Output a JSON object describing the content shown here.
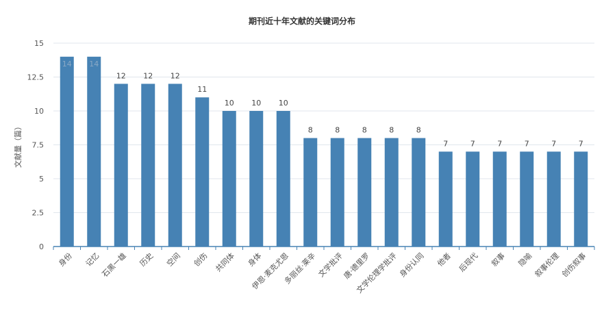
{
  "chart_data": {
    "type": "bar",
    "title": "期刊近十年文献的关键词分布",
    "xlabel": "",
    "ylabel": "文献量（篇）",
    "ylim": [
      0,
      15
    ],
    "yticks": [
      "0",
      "2.5",
      "5",
      "7.5",
      "10",
      "12.5",
      "15"
    ],
    "ytick_values": [
      0,
      2.5,
      5,
      7.5,
      10,
      12.5,
      15
    ],
    "categories": [
      "身份",
      "记忆",
      "石黑一雄",
      "历史",
      "空间",
      "创伤",
      "共同体",
      "身体",
      "伊恩·麦克尤恩",
      "多丽丝·莱辛",
      "文学批评",
      "唐·德里罗",
      "文学伦理学批评",
      "身份认同",
      "他者",
      "后现代",
      "叙事",
      "隐喻",
      "叙事伦理",
      "创伤叙事"
    ],
    "values": [
      14,
      14,
      12,
      12,
      12,
      11,
      10,
      10,
      10,
      8,
      8,
      8,
      8,
      8,
      7,
      7,
      7,
      7,
      7,
      7
    ],
    "colors": {
      "bar": "#4682b4",
      "grid": "#e0e6ec",
      "axis": "#4682b4"
    },
    "grid": true,
    "legend": "none"
  }
}
